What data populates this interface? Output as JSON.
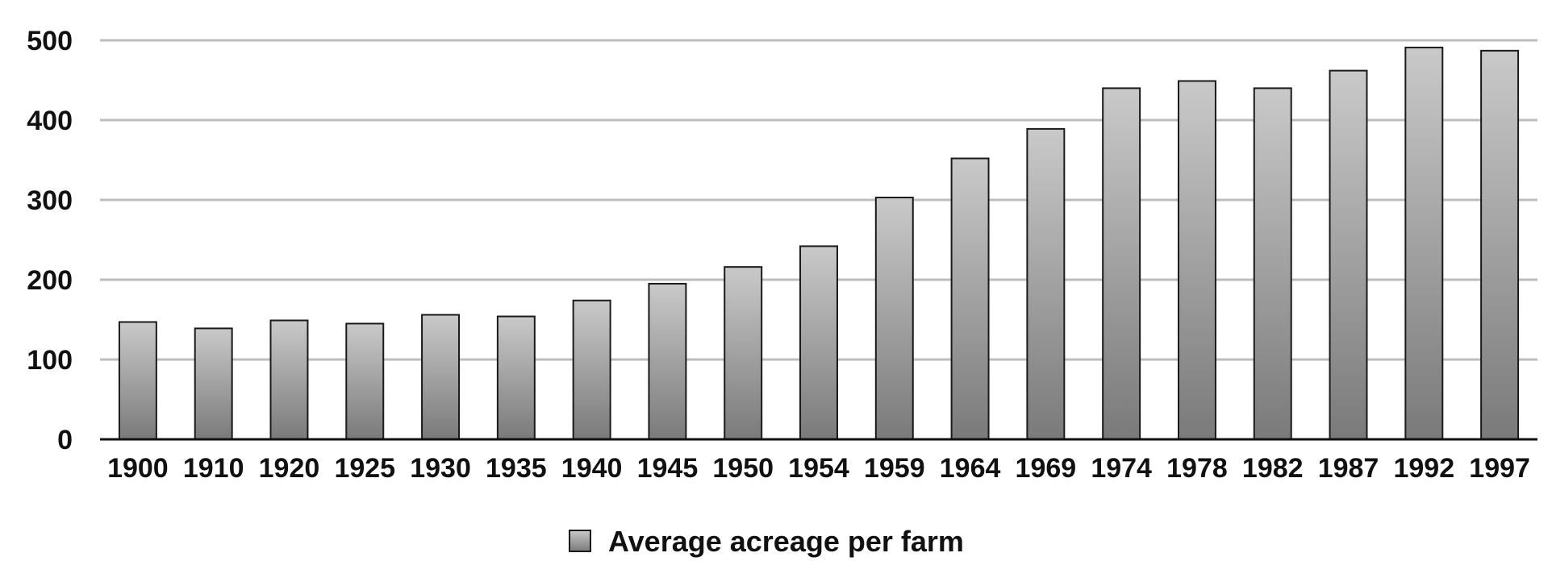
{
  "chart_data": {
    "type": "bar",
    "categories": [
      "1900",
      "1910",
      "1920",
      "1925",
      "1930",
      "1935",
      "1940",
      "1945",
      "1950",
      "1954",
      "1959",
      "1964",
      "1969",
      "1974",
      "1978",
      "1982",
      "1987",
      "1992",
      "1997"
    ],
    "series": [
      {
        "name": "Average acreage per farm",
        "values": [
          147,
          139,
          149,
          145,
          156,
          154,
          174,
          195,
          216,
          242,
          303,
          352,
          389,
          440,
          449,
          440,
          462,
          491,
          487
        ]
      }
    ],
    "ylim": [
      0,
      500
    ],
    "yticks": [
      0,
      100,
      200,
      300,
      400,
      500
    ],
    "grid": true,
    "legend_position": "bottom"
  },
  "colors": {
    "bar_gradient_top": "#c9c9c9",
    "bar_gradient_bottom": "#7a7a7a",
    "gridline": "#bdbdbd",
    "axis": "#111111"
  }
}
